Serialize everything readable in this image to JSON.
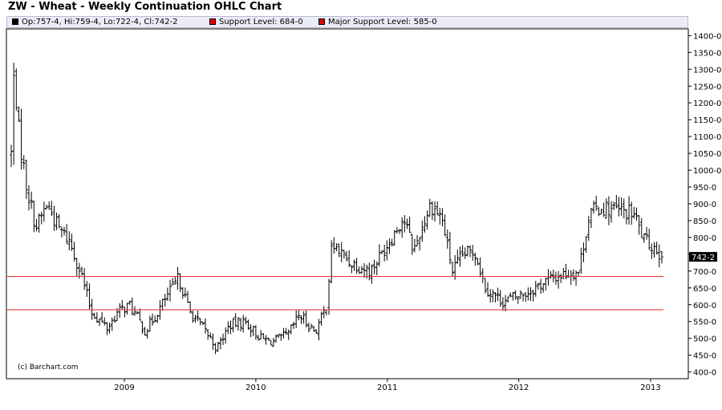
{
  "title": "ZW - Wheat - Weekly Continuation OHLC Chart",
  "legend": [
    {
      "label": "Op:757-4, Hi:759-4, Lo:722-4, Cl:742-2",
      "color": "#000000"
    },
    {
      "label": "Support Level: 684-0",
      "color": "#dd0000"
    },
    {
      "label": "Major Support Level: 585-0",
      "color": "#dd0000"
    }
  ],
  "copyright": "(c) Barchart.com",
  "chart_data": {
    "type": "ohlc",
    "title": "ZW - Wheat - Weekly Continuation OHLC Chart",
    "interval": "weekly",
    "y_ticks": [
      "1400-0",
      "1350-0",
      "1300-0",
      "1250-0",
      "1200-0",
      "1150-0",
      "1100-0",
      "1050-0",
      "1000-0",
      "950-0",
      "900-0",
      "850-0",
      "800-0",
      "750-0",
      "700-0",
      "650-0",
      "600-0",
      "550-0",
      "500-0",
      "450-0",
      "400-0"
    ],
    "ylim": [
      380,
      1420
    ],
    "x_ticks": [
      "2009",
      "2010",
      "2011",
      "2012",
      "2013"
    ],
    "current_price_label": "742-2",
    "last_bar": {
      "open": 757.5,
      "high": 759.5,
      "low": 722.5,
      "close": 742.25
    },
    "support_levels": [
      {
        "name": "Support Level",
        "value": 684
      },
      {
        "name": "Major Support Level",
        "value": 585
      }
    ],
    "close_path": [
      {
        "date": "2008-02-22",
        "close": 1050
      },
      {
        "date": "2008-03-01",
        "close": 1300
      },
      {
        "date": "2008-03-15",
        "close": 1100
      },
      {
        "date": "2008-04-05",
        "close": 950
      },
      {
        "date": "2008-05-01",
        "close": 830
      },
      {
        "date": "2008-06-01",
        "close": 900
      },
      {
        "date": "2008-07-01",
        "close": 830
      },
      {
        "date": "2008-08-01",
        "close": 790
      },
      {
        "date": "2008-09-01",
        "close": 700
      },
      {
        "date": "2008-10-01",
        "close": 580
      },
      {
        "date": "2008-11-15",
        "close": 530
      },
      {
        "date": "2008-12-15",
        "close": 580
      },
      {
        "date": "2009-01-15",
        "close": 600
      },
      {
        "date": "2009-03-01",
        "close": 520
      },
      {
        "date": "2009-04-15",
        "close": 600
      },
      {
        "date": "2009-06-01",
        "close": 680
      },
      {
        "date": "2009-07-01",
        "close": 580
      },
      {
        "date": "2009-08-15",
        "close": 520
      },
      {
        "date": "2009-09-15",
        "close": 470
      },
      {
        "date": "2009-10-20",
        "close": 540
      },
      {
        "date": "2009-12-01",
        "close": 550
      },
      {
        "date": "2010-01-15",
        "close": 500
      },
      {
        "date": "2010-02-15",
        "close": 490
      },
      {
        "date": "2010-04-01",
        "close": 510
      },
      {
        "date": "2010-05-01",
        "close": 570
      },
      {
        "date": "2010-06-15",
        "close": 520
      },
      {
        "date": "2010-07-15",
        "close": 590
      },
      {
        "date": "2010-08-01",
        "close": 780
      },
      {
        "date": "2010-09-15",
        "close": 730
      },
      {
        "date": "2010-11-15",
        "close": 700
      },
      {
        "date": "2011-01-01",
        "close": 780
      },
      {
        "date": "2011-02-15",
        "close": 860
      },
      {
        "date": "2011-03-15",
        "close": 760
      },
      {
        "date": "2011-05-01",
        "close": 900
      },
      {
        "date": "2011-06-01",
        "close": 860
      },
      {
        "date": "2011-07-01",
        "close": 700
      },
      {
        "date": "2011-08-01",
        "close": 750
      },
      {
        "date": "2011-09-01",
        "close": 760
      },
      {
        "date": "2011-10-01",
        "close": 650
      },
      {
        "date": "2011-11-15",
        "close": 610
      },
      {
        "date": "2011-12-15",
        "close": 620
      },
      {
        "date": "2012-02-01",
        "close": 640
      },
      {
        "date": "2012-03-15",
        "close": 670
      },
      {
        "date": "2012-05-01",
        "close": 690
      },
      {
        "date": "2012-06-15",
        "close": 700
      },
      {
        "date": "2012-07-15",
        "close": 870
      },
      {
        "date": "2012-08-15",
        "close": 890
      },
      {
        "date": "2012-10-01",
        "close": 880
      },
      {
        "date": "2012-11-15",
        "close": 870
      },
      {
        "date": "2012-12-15",
        "close": 790
      },
      {
        "date": "2013-01-15",
        "close": 770
      },
      {
        "date": "2013-02-01",
        "close": 742.25
      }
    ]
  }
}
